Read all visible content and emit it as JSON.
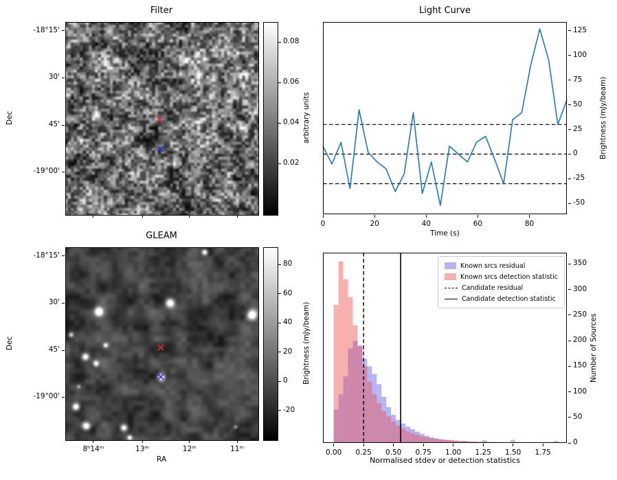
{
  "chart_data": [
    {
      "id": "filter-map",
      "type": "heatmap",
      "title": "Filter",
      "xlabel": "",
      "ylabel": "Dec",
      "ytick_labels": [
        "-18°15'",
        "30'",
        "45'",
        "-19°00'"
      ],
      "colormap": "gray",
      "colorbar": {
        "label": "arbitrary units",
        "ticks": [
          0.02,
          0.04,
          0.06,
          0.08
        ],
        "vmin": -0.005,
        "vmax": 0.09
      },
      "markers": [
        {
          "name": "candidate-position",
          "shape": "x",
          "color": "#e03030",
          "fx": 0.486,
          "fy": 0.503
        },
        {
          "name": "known-source-position",
          "shape": "x",
          "color": "#2828e8",
          "fx": 0.493,
          "fy": 0.657
        }
      ]
    },
    {
      "id": "light-curve",
      "type": "line",
      "title": "Light Curve",
      "xlabel": "Time (s)",
      "ylabel": "Brightness (mJy/beam)",
      "line_color": "#1f77b4",
      "x": [
        0,
        3.5,
        7,
        10.5,
        14,
        17.5,
        21,
        24.5,
        28,
        31.5,
        35,
        38.5,
        42,
        45.5,
        49,
        52.5,
        56,
        59.5,
        63,
        66.5,
        70,
        73.5,
        77,
        80.5,
        84,
        87.5,
        91,
        94.5
      ],
      "y": [
        8,
        -10,
        12,
        -35,
        45,
        2,
        -8,
        -15,
        -38,
        -20,
        42,
        -40,
        -8,
        -52,
        8,
        0,
        -8,
        12,
        18,
        -5,
        -30,
        35,
        42,
        90,
        127,
        95,
        30,
        55
      ],
      "threshold_lines": [
        30,
        0,
        -30
      ],
      "xlim": [
        0,
        94.5
      ],
      "ylim": [
        -61,
        134
      ],
      "xticks": [
        0,
        20,
        40,
        60,
        80
      ],
      "yticks": [
        -50,
        -25,
        0,
        25,
        50,
        75,
        100,
        125
      ],
      "grid": false
    },
    {
      "id": "gleam-map",
      "type": "heatmap",
      "title": "GLEAM",
      "xlabel": "RA",
      "ylabel": "Dec",
      "xtick_labels": [
        "8ʰ14ᵐ",
        "13ᵐ",
        "12ᵐ",
        "11ᵐ"
      ],
      "ytick_labels": [
        "-18°15'",
        "30'",
        "45'",
        "-19°00'"
      ],
      "colormap": "gray",
      "colorbar": {
        "label": "Brightness (mJy/beam)",
        "ticks": [
          -20,
          0,
          20,
          40,
          60,
          80
        ],
        "vmin": -40,
        "vmax": 92
      },
      "sources": [
        [
          0.17,
          0.33,
          4.5,
          1.0
        ],
        [
          0.1,
          0.565,
          3.5,
          0.9
        ],
        [
          0.155,
          0.6,
          3,
          0.8
        ],
        [
          0.205,
          0.505,
          2.5,
          0.7
        ],
        [
          0.54,
          0.285,
          4.5,
          1.0
        ],
        [
          0.965,
          0.345,
          5,
          1.0
        ],
        [
          0.72,
          0.02,
          3,
          0.8
        ],
        [
          0.493,
          0.671,
          3.5,
          1.0
        ],
        [
          0.05,
          0.825,
          3.5,
          0.9
        ],
        [
          0.105,
          0.925,
          4,
          1.0
        ],
        [
          0.3,
          0.935,
          3.5,
          0.9
        ],
        [
          0.025,
          0.45,
          2.5,
          0.6
        ],
        [
          0.33,
          0.985,
          2.5,
          0.7
        ],
        [
          0.88,
          0.93,
          2,
          0.4
        ],
        [
          0.065,
          0.72,
          2,
          0.4
        ]
      ],
      "markers": [
        {
          "name": "candidate-position",
          "shape": "x",
          "color": "#e03030",
          "fx": 0.493,
          "fy": 0.518
        },
        {
          "name": "known-source-position",
          "shape": "x",
          "color": "#2828e8",
          "fx": 0.493,
          "fy": 0.671
        }
      ]
    },
    {
      "id": "distribution-histogram",
      "type": "bar",
      "title": "",
      "xlabel": "Normalised stdev or detection statistics",
      "ylabel": "Number of Sources",
      "bin_start": 0,
      "bin_width": 0.04,
      "series": [
        {
          "name": "Known srcs residual",
          "fill": "rgba(90,90,230,0.45)",
          "legend_color": "#b5b5ea",
          "values": [
            65,
            95,
            130,
            185,
            200,
            190,
            165,
            150,
            135,
            115,
            90,
            70,
            55,
            45,
            38,
            32,
            27,
            22,
            18,
            14,
            11,
            9,
            7,
            6,
            5,
            4,
            3,
            3,
            2,
            2,
            2,
            5,
            1,
            1,
            1,
            0,
            0,
            0,
            0,
            0,
            0,
            0,
            0,
            0,
            0,
            0,
            0,
            0
          ]
        },
        {
          "name": "Known srcs detection statistic",
          "fill": "rgba(235,80,80,0.45)",
          "legend_color": "#f3b0b0",
          "values": [
            270,
            355,
            320,
            285,
            230,
            190,
            150,
            120,
            95,
            78,
            62,
            52,
            42,
            34,
            28,
            23,
            19,
            16,
            13,
            11,
            9,
            8,
            7,
            6,
            6,
            5,
            4,
            4,
            3,
            3,
            2,
            2,
            2,
            2,
            1,
            1,
            1,
            6,
            1,
            0,
            0,
            0,
            0,
            0,
            0,
            0,
            4,
            1
          ]
        }
      ],
      "vlines": [
        {
          "label": "Candidate residual",
          "style": "dashed",
          "x": 0.25
        },
        {
          "label": "Candidate detection statistic",
          "style": "solid",
          "x": 0.56
        }
      ],
      "xlim": [
        -0.09,
        1.95
      ],
      "ylim": [
        0,
        372
      ],
      "xticks": [
        0,
        0.25,
        0.5,
        0.75,
        1.0,
        1.25,
        1.5,
        1.75
      ],
      "xtick_labels": [
        "0.00",
        "0.25",
        "0.50",
        "0.75",
        "1.00",
        "1.25",
        "1.50",
        "1.75"
      ],
      "yticks": [
        0,
        50,
        100,
        150,
        200,
        250,
        300,
        350
      ],
      "legend": [
        "Known srcs residual",
        "Known srcs detection statistic",
        "Candidate residual",
        "Candidate detection statistic"
      ],
      "legend_position": "upper right"
    }
  ]
}
